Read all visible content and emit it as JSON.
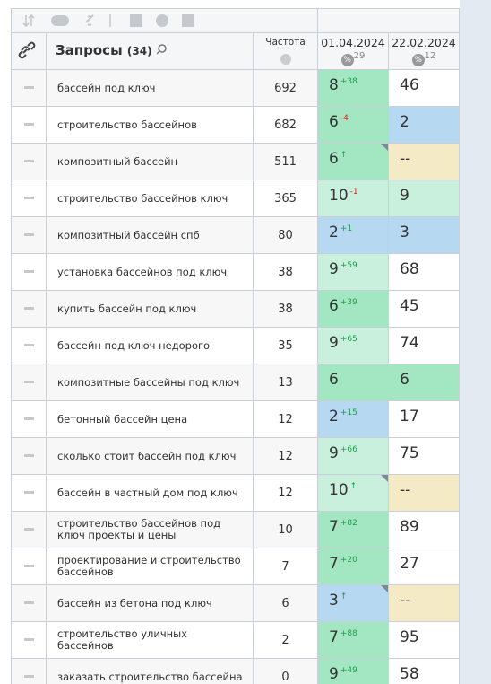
{
  "header": {
    "queries_label": "Запросы",
    "queries_count": "(34)",
    "frequency_label": "Частота",
    "dates": [
      {
        "date": "01.04.2024",
        "count": "29"
      },
      {
        "date": "22.02.2024",
        "count": "12"
      }
    ]
  },
  "colors": {
    "green": "#a3e6c2",
    "light": "#c8f0dc",
    "blue": "#b6d8f1",
    "beige": "#f5eac6",
    "white": "#ffffff"
  },
  "rows": [
    {
      "query": "бассейн под ключ",
      "freq": "692",
      "p1": {
        "value": "8",
        "delta": "+38",
        "up": true,
        "color": "green"
      },
      "p2": {
        "value": "46",
        "color": "white"
      }
    },
    {
      "query": "строительство бассейнов",
      "freq": "682",
      "p1": {
        "value": "6",
        "delta": "-4",
        "up": false,
        "color": "green"
      },
      "p2": {
        "value": "2",
        "color": "blue"
      }
    },
    {
      "query": "композитный бассейн",
      "freq": "511",
      "p1": {
        "value": "6",
        "delta": "↑",
        "up": true,
        "color": "green",
        "corner": true
      },
      "p2": {
        "value": "--",
        "color": "beige"
      }
    },
    {
      "query": "строительство бассейнов ключ",
      "freq": "365",
      "p1": {
        "value": "10",
        "delta": "-1",
        "up": false,
        "color": "light"
      },
      "p2": {
        "value": "9",
        "color": "light"
      }
    },
    {
      "query": "композитный бассейн спб",
      "freq": "80",
      "p1": {
        "value": "2",
        "delta": "+1",
        "up": true,
        "color": "blue"
      },
      "p2": {
        "value": "3",
        "color": "blue"
      }
    },
    {
      "query": "установка бассейнов под ключ",
      "freq": "38",
      "p1": {
        "value": "9",
        "delta": "+59",
        "up": true,
        "color": "light"
      },
      "p2": {
        "value": "68",
        "color": "white"
      }
    },
    {
      "query": "купить бассейн под ключ",
      "freq": "38",
      "p1": {
        "value": "6",
        "delta": "+39",
        "up": true,
        "color": "green"
      },
      "p2": {
        "value": "45",
        "color": "white"
      }
    },
    {
      "query": "бассейн под ключ недорого",
      "freq": "35",
      "p1": {
        "value": "9",
        "delta": "+65",
        "up": true,
        "color": "light"
      },
      "p2": {
        "value": "74",
        "color": "white"
      }
    },
    {
      "query": "композитные бассейны под ключ",
      "freq": "13",
      "p1": {
        "value": "6",
        "color": "green"
      },
      "p2": {
        "value": "6",
        "color": "green"
      }
    },
    {
      "query": "бетонный бассейн цена",
      "freq": "12",
      "p1": {
        "value": "2",
        "delta": "+15",
        "up": true,
        "color": "blue"
      },
      "p2": {
        "value": "17",
        "color": "white"
      }
    },
    {
      "query": "сколько стоит бассейн под ключ",
      "freq": "12",
      "p1": {
        "value": "9",
        "delta": "+66",
        "up": true,
        "color": "light"
      },
      "p2": {
        "value": "75",
        "color": "white"
      }
    },
    {
      "query": "бассейн в частный дом под ключ",
      "freq": "12",
      "p1": {
        "value": "10",
        "delta": "↑",
        "up": true,
        "color": "light",
        "corner": true
      },
      "p2": {
        "value": "--",
        "color": "beige"
      }
    },
    {
      "query": "строительство бассейнов под ключ проекты и цены",
      "freq": "10",
      "p1": {
        "value": "7",
        "delta": "+82",
        "up": true,
        "color": "green"
      },
      "p2": {
        "value": "89",
        "color": "white"
      }
    },
    {
      "query": "проектирование и строительство бассейнов",
      "freq": "7",
      "p1": {
        "value": "7",
        "delta": "+20",
        "up": true,
        "color": "green"
      },
      "p2": {
        "value": "27",
        "color": "white"
      }
    },
    {
      "query": "бассейн из бетона под ключ",
      "freq": "6",
      "p1": {
        "value": "3",
        "delta": "↑",
        "up": true,
        "color": "blue",
        "corner": true
      },
      "p2": {
        "value": "--",
        "color": "beige"
      }
    },
    {
      "query": "строительство уличных бассейнов",
      "freq": "2",
      "p1": {
        "value": "7",
        "delta": "+88",
        "up": true,
        "color": "green"
      },
      "p2": {
        "value": "95",
        "color": "white"
      }
    },
    {
      "query": "заказать строительство бассейна",
      "freq": "0",
      "p1": {
        "value": "9",
        "delta": "+49",
        "up": true,
        "color": "green"
      },
      "p2": {
        "value": "58",
        "color": "white"
      }
    }
  ]
}
